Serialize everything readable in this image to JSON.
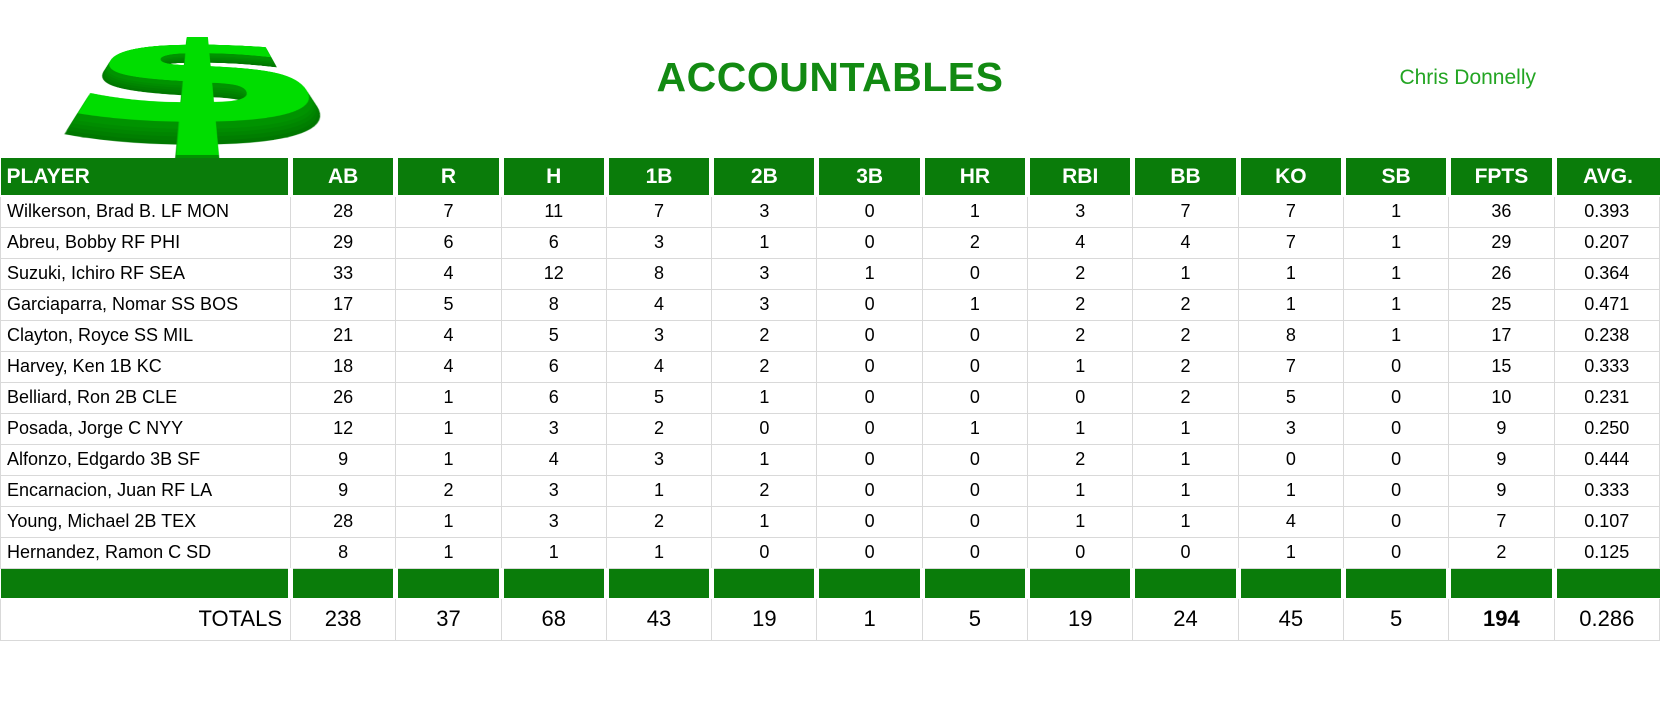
{
  "header": {
    "title": "ACCOUNTABLES",
    "author": "Chris Donnelly",
    "logo_glyph": "$",
    "logo_icon": "3d-dollar-sign"
  },
  "colors": {
    "brand_green": "#0a7c0a",
    "title_green": "#128a12",
    "author_green": "#23a523",
    "logo_face_green": "#00dd00",
    "logo_side_green": "#009300",
    "grid_gray": "#d9d9d9"
  },
  "table": {
    "columns": [
      "PLAYER",
      "AB",
      "R",
      "H",
      "1B",
      "2B",
      "3B",
      "HR",
      "RBI",
      "BB",
      "KO",
      "SB",
      "FPTS",
      "AVG."
    ],
    "rows": [
      [
        "Wilkerson, Brad B. LF MON",
        "28",
        "7",
        "11",
        "7",
        "3",
        "0",
        "1",
        "3",
        "7",
        "7",
        "1",
        "36",
        "0.393"
      ],
      [
        "Abreu, Bobby RF PHI",
        "29",
        "6",
        "6",
        "3",
        "1",
        "0",
        "2",
        "4",
        "4",
        "7",
        "1",
        "29",
        "0.207"
      ],
      [
        "Suzuki, Ichiro RF SEA",
        "33",
        "4",
        "12",
        "8",
        "3",
        "1",
        "0",
        "2",
        "1",
        "1",
        "1",
        "26",
        "0.364"
      ],
      [
        "Garciaparra, Nomar SS BOS",
        "17",
        "5",
        "8",
        "4",
        "3",
        "0",
        "1",
        "2",
        "2",
        "1",
        "1",
        "25",
        "0.471"
      ],
      [
        "Clayton, Royce SS MIL",
        "21",
        "4",
        "5",
        "3",
        "2",
        "0",
        "0",
        "2",
        "2",
        "8",
        "1",
        "17",
        "0.238"
      ],
      [
        "Harvey, Ken 1B KC",
        "18",
        "4",
        "6",
        "4",
        "2",
        "0",
        "0",
        "1",
        "2",
        "7",
        "0",
        "15",
        "0.333"
      ],
      [
        "Belliard, Ron 2B CLE",
        "26",
        "1",
        "6",
        "5",
        "1",
        "0",
        "0",
        "0",
        "2",
        "5",
        "0",
        "10",
        "0.231"
      ],
      [
        "Posada, Jorge C NYY",
        "12",
        "1",
        "3",
        "2",
        "0",
        "0",
        "1",
        "1",
        "1",
        "3",
        "0",
        "9",
        "0.250"
      ],
      [
        "Alfonzo, Edgardo 3B SF",
        "9",
        "1",
        "4",
        "3",
        "1",
        "0",
        "0",
        "2",
        "1",
        "0",
        "0",
        "9",
        "0.444"
      ],
      [
        "Encarnacion, Juan RF LA",
        "9",
        "2",
        "3",
        "1",
        "2",
        "0",
        "0",
        "1",
        "1",
        "1",
        "0",
        "9",
        "0.333"
      ],
      [
        "Young, Michael 2B TEX",
        "28",
        "1",
        "3",
        "2",
        "1",
        "0",
        "0",
        "1",
        "1",
        "4",
        "0",
        "7",
        "0.107"
      ],
      [
        "Hernandez, Ramon C SD",
        "8",
        "1",
        "1",
        "1",
        "0",
        "0",
        "0",
        "0",
        "0",
        "1",
        "0",
        "2",
        "0.125"
      ]
    ],
    "totals": [
      "TOTALS",
      "238",
      "37",
      "68",
      "43",
      "19",
      "1",
      "5",
      "19",
      "24",
      "45",
      "5",
      "194",
      "0.286"
    ]
  }
}
